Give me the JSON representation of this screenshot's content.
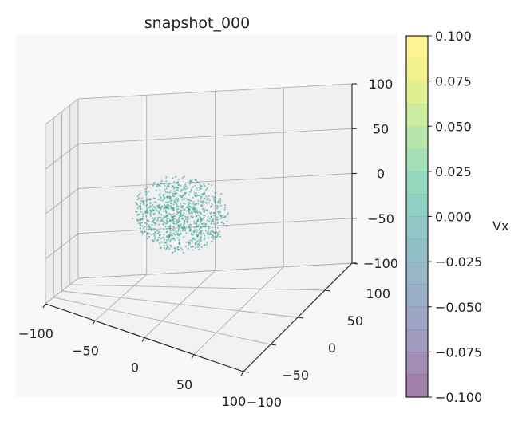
{
  "chart_data": {
    "type": "scatter",
    "projection": "3d",
    "title": "snapshot_000",
    "xlim": [
      -100,
      100
    ],
    "ylim": [
      -100,
      100
    ],
    "zlim": [
      -100,
      100
    ],
    "x_ticks": [
      "−100",
      "−50",
      "0",
      "50",
      "100"
    ],
    "y_ticks": [
      "−100",
      "−50",
      "0",
      "50",
      "100"
    ],
    "z_ticks": [
      "−100",
      "−50",
      "0",
      "50",
      "100"
    ],
    "xlabel": "",
    "ylabel": "",
    "zlabel": "",
    "grid": true,
    "pane_color": "#f8f8f8",
    "point_color": "#2a9d8f",
    "point_cloud": {
      "shape": "sphere",
      "center": [
        0,
        0,
        0
      ],
      "radius": 40,
      "count": 900
    },
    "colorbar": {
      "label": "Vx",
      "colormap": "viridis",
      "alpha": 0.5,
      "min": -0.1,
      "max": 0.1,
      "ticks": [
        "−0.100",
        "−0.075",
        "−0.050",
        "−0.025",
        "0.000",
        "0.025",
        "0.050",
        "0.075",
        "0.100"
      ],
      "bands": [
        "#440154",
        "#481c6e",
        "#453781",
        "#3e4c8a",
        "#365c8d",
        "#2f6d8e",
        "#277f8e",
        "#21908d",
        "#1fa187",
        "#2db27d",
        "#4ac16d",
        "#6ece58",
        "#98d83e",
        "#c2df23",
        "#e6e419",
        "#fde725"
      ]
    }
  }
}
